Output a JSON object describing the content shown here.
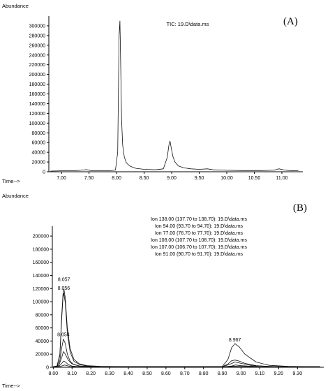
{
  "chart_data": [
    {
      "type": "line",
      "panel_label": "(A)",
      "title": "TIC: 19.D\\data.ms",
      "ylabel": "Abundance",
      "xlabel": "Time-->",
      "xlim": [
        6.77,
        11.38
      ],
      "ylim": [
        0,
        320000
      ],
      "x_ticks": [
        7.0,
        7.5,
        8.0,
        8.5,
        9.0,
        9.5,
        10.0,
        10.5,
        11.0
      ],
      "x_tick_labels": [
        "7.00",
        "7.50",
        "8.00",
        "8.50",
        "9.00",
        "9.50",
        "10.00",
        "10.50",
        "11.00"
      ],
      "y_ticks": [
        0,
        20000,
        40000,
        60000,
        80000,
        100000,
        120000,
        140000,
        160000,
        180000,
        200000,
        220000,
        240000,
        260000,
        280000,
        300000
      ],
      "series": [
        {
          "x": [
            6.8,
            7.0,
            7.2,
            7.35,
            7.45,
            7.55,
            7.7,
            7.85,
            7.98,
            8.02,
            8.045,
            8.06,
            8.075,
            8.09,
            8.11,
            8.14,
            8.18,
            8.25,
            8.35,
            8.5,
            8.7,
            8.85,
            8.92,
            8.95,
            8.97,
            8.99,
            9.02,
            9.06,
            9.12,
            9.22,
            9.35,
            9.5,
            9.65,
            9.75,
            10.0,
            10.3,
            10.6,
            10.85,
            10.95,
            11.05,
            11.15,
            11.3
          ],
          "y": [
            1500,
            2000,
            2000,
            3000,
            4500,
            2000,
            2000,
            2000,
            3500,
            40000,
            280000,
            310000,
            220000,
            110000,
            55000,
            30000,
            18000,
            11000,
            7000,
            5000,
            4000,
            6000,
            30000,
            55000,
            63000,
            50000,
            32000,
            20000,
            12000,
            8000,
            6000,
            5000,
            6000,
            4000,
            3000,
            2500,
            2500,
            3000,
            6000,
            3500,
            2500,
            2000
          ]
        }
      ]
    },
    {
      "type": "line",
      "panel_label": "(B)",
      "ylabel": "Abundance",
      "xlabel": "Time-->",
      "xlim": [
        7.995,
        9.44
      ],
      "ylim": [
        0,
        215000
      ],
      "x_ticks": [
        8.0,
        8.1,
        8.2,
        8.3,
        8.4,
        8.5,
        8.6,
        8.7,
        8.8,
        8.9,
        9.0,
        9.1,
        9.2,
        9.3
      ],
      "x_tick_labels": [
        "8.00",
        "8.10",
        "8.20",
        "8.30",
        "8.40",
        "8.50",
        "8.60",
        "8.70",
        "8.80",
        "8.90",
        "9.00",
        "9.10",
        "9.20",
        "9.30"
      ],
      "y_ticks": [
        0,
        20000,
        40000,
        60000,
        80000,
        100000,
        120000,
        140000,
        160000,
        180000,
        200000
      ],
      "legend": [
        "Ion 138.00 (137.70 to 138.70): 19.D\\data.ms",
        "Ion 94.00 (93.70 to 94.70): 19.D\\data.ms",
        "Ion 77.00 (76.70 to 77.70): 19.D\\data.ms",
        "Ion 108.00 (107.70 to 108.70): 19.D\\data.ms",
        "Ion 107.00 (106.70 to 107.70): 19.D\\data.ms",
        "Ion 91.00 (90.70 to 91.70): 19.D\\data.ms"
      ],
      "annotations": [
        {
          "text": "8.057",
          "x": 8.057,
          "y": 128000
        },
        {
          "text": "8.056",
          "x": 8.056,
          "y": 115000
        },
        {
          "text": "8.054",
          "x": 8.054,
          "y": 44000
        },
        {
          "text": "8.967",
          "x": 8.967,
          "y": 36000
        }
      ],
      "series": [
        {
          "x": [
            8.0,
            8.02,
            8.035,
            8.045,
            8.052,
            8.057,
            8.064,
            8.075,
            8.09,
            8.11,
            8.14,
            8.18,
            8.25,
            8.4,
            8.6,
            8.8,
            8.9,
            8.93,
            8.95,
            8.967,
            8.99,
            9.02,
            9.08,
            9.15,
            9.25,
            9.35,
            9.42
          ],
          "y": [
            1000,
            2000,
            20000,
            80000,
            112000,
            119000,
            105000,
            60000,
            28000,
            12000,
            5000,
            2500,
            1500,
            1000,
            1000,
            1000,
            1200,
            12000,
            30000,
            36000,
            31000,
            20000,
            8000,
            3000,
            1500,
            1000,
            1000
          ]
        },
        {
          "x": [
            8.0,
            8.02,
            8.035,
            8.045,
            8.052,
            8.056,
            8.064,
            8.075,
            8.09,
            8.11,
            8.14,
            8.18,
            8.25,
            8.4,
            8.6,
            8.8,
            8.9,
            8.93,
            8.95,
            8.967,
            8.99,
            9.02,
            9.08,
            9.15,
            9.25,
            9.35,
            9.42
          ],
          "y": [
            800,
            1800,
            18000,
            75000,
            106000,
            113000,
            98000,
            52000,
            23000,
            9000,
            4000,
            2000,
            1200,
            900,
            900,
            900,
            1000,
            5000,
            10000,
            11000,
            9500,
            6000,
            2500,
            1200,
            900,
            800,
            800
          ]
        },
        {
          "x": [
            8.0,
            8.02,
            8.035,
            8.045,
            8.054,
            8.064,
            8.075,
            8.09,
            8.11,
            8.14,
            8.2,
            8.4,
            8.7,
            8.9,
            8.94,
            8.967,
            9.0,
            9.06,
            9.2,
            9.42
          ],
          "y": [
            500,
            1200,
            10000,
            30000,
            43000,
            36000,
            20000,
            9000,
            4000,
            2000,
            1000,
            800,
            800,
            900,
            4500,
            8000,
            6000,
            2500,
            900,
            700
          ]
        },
        {
          "x": [
            8.0,
            8.03,
            8.045,
            8.054,
            8.064,
            8.08,
            8.1,
            8.14,
            8.2,
            8.4,
            8.9,
            8.95,
            8.97,
            9.0,
            9.1,
            9.42
          ],
          "y": [
            300,
            3000,
            15000,
            24000,
            20000,
            11000,
            5000,
            2000,
            800,
            500,
            500,
            2000,
            3500,
            2500,
            700,
            400
          ]
        },
        {
          "x": [
            8.0,
            8.03,
            8.045,
            8.055,
            8.065,
            8.08,
            8.1,
            8.15,
            8.3,
            8.9,
            8.96,
            9.0,
            9.1,
            9.42
          ],
          "y": [
            200,
            1500,
            6000,
            9500,
            8000,
            4000,
            1800,
            700,
            300,
            300,
            1500,
            1200,
            400,
            200
          ]
        },
        {
          "x": [
            8.0,
            8.03,
            8.05,
            8.06,
            8.07,
            8.09,
            8.12,
            8.2,
            8.9,
            8.97,
            9.05,
            9.42
          ],
          "y": [
            200,
            800,
            2500,
            3500,
            2800,
            1200,
            500,
            200,
            200,
            800,
            300,
            200
          ]
        }
      ]
    }
  ]
}
